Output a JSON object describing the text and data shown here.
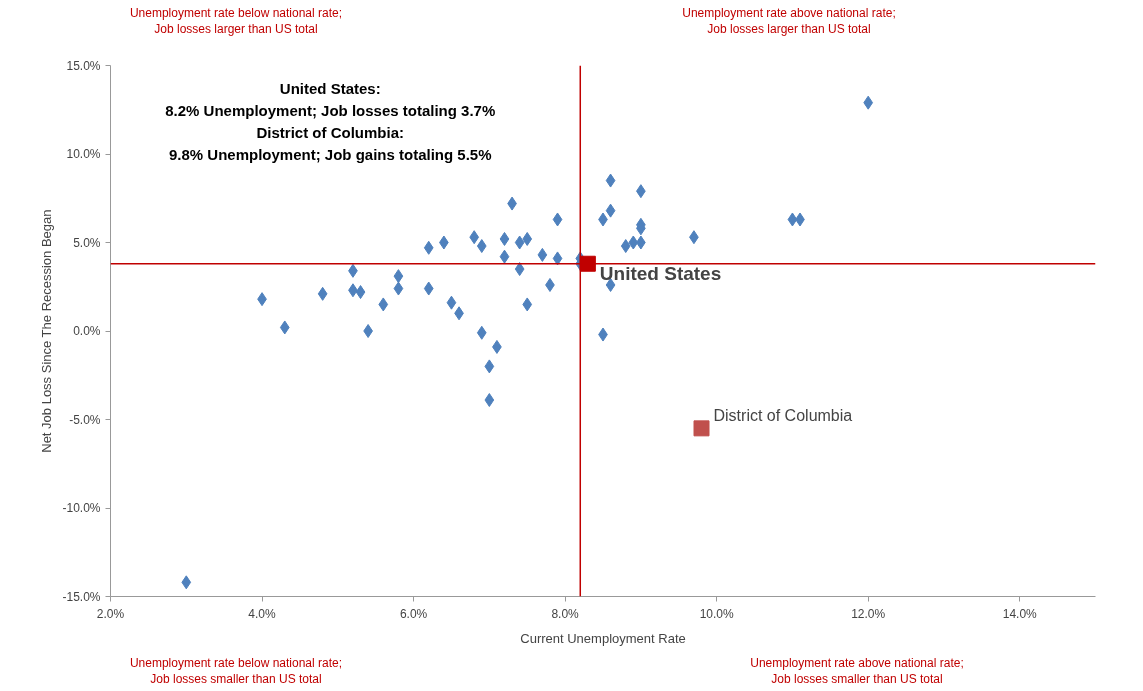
{
  "chart_data": {
    "type": "scatter",
    "xlabel": "Current Unemployment Rate",
    "ylabel": "Net Job Loss Since The Recession Began",
    "xlim": [
      2,
      15
    ],
    "ylim": [
      -15,
      15
    ],
    "xticks": [
      {
        "value": 2,
        "label": "2.0%"
      },
      {
        "value": 4,
        "label": "4.0%"
      },
      {
        "value": 6,
        "label": "6.0%"
      },
      {
        "value": 8,
        "label": "8.0%"
      },
      {
        "value": 10,
        "label": "10.0%"
      },
      {
        "value": 12,
        "label": "12.0%"
      },
      {
        "value": 14,
        "label": "14.0%"
      }
    ],
    "yticks": [
      {
        "value": -15,
        "label": "-15.0%"
      },
      {
        "value": -10,
        "label": "-10.0%"
      },
      {
        "value": -5,
        "label": "-5.0%"
      },
      {
        "value": 0,
        "label": "0.0%"
      },
      {
        "value": 5,
        "label": "5.0%"
      },
      {
        "value": 10,
        "label": "10.0%"
      },
      {
        "value": 15,
        "label": "15.0%"
      }
    ],
    "grid": false,
    "legend": false,
    "series": [
      {
        "color": "#4f81bd",
        "marker": "diamond",
        "x": [
          3.0,
          4.0,
          4.3,
          4.8,
          5.2,
          5.2,
          5.3,
          5.4,
          5.6,
          5.8,
          5.8,
          6.2,
          6.2,
          6.4,
          6.5,
          6.6,
          6.8,
          6.9,
          6.9,
          7.1,
          7.0,
          7.0,
          7.2,
          7.2,
          7.3,
          7.4,
          7.4,
          7.5,
          7.5,
          7.7,
          7.8,
          7.9,
          7.9,
          8.2,
          8.2,
          8.5,
          8.5,
          8.6,
          8.6,
          8.6,
          8.8,
          8.9,
          9.0,
          9.0,
          9.0,
          9.0,
          9.7,
          11.0,
          11.1,
          12.0
        ],
        "values": [
          -14.2,
          1.8,
          0.2,
          2.1,
          3.4,
          2.3,
          2.2,
          0.0,
          1.5,
          3.1,
          2.4,
          4.7,
          2.4,
          5.0,
          1.6,
          1.0,
          5.3,
          4.8,
          -0.1,
          -0.9,
          -2.0,
          -3.9,
          4.2,
          5.2,
          7.2,
          3.5,
          5.0,
          5.2,
          1.5,
          4.3,
          2.6,
          4.1,
          6.3,
          4.1,
          3.8,
          -0.2,
          6.3,
          8.5,
          6.8,
          2.6,
          4.8,
          5.0,
          5.0,
          6.0,
          5.8,
          7.9,
          5.3,
          6.3,
          6.3,
          12.9
        ]
      },
      {
        "name": "United States",
        "color": "#c00000",
        "marker": "square",
        "x": [
          8.3
        ],
        "values": [
          3.8
        ]
      },
      {
        "name": "District of Columbia",
        "color": "#c0504d",
        "marker": "square",
        "x": [
          9.8
        ],
        "values": [
          -5.5
        ]
      }
    ],
    "ref_lines": [
      {
        "axis": "x",
        "value": 8.2,
        "color": "#c00000"
      },
      {
        "axis": "y",
        "value": 3.8,
        "color": "#c00000"
      }
    ],
    "annotations": [
      "Unemployment rate below national rate;\nJob losses larger than US total",
      "Unemployment rate above national rate;\nJob losses larger than US total",
      "Unemployment rate below national rate;\nJob losses smaller than US total",
      "Unemployment rate above national rate;\nJob losses smaller than US total",
      "United States:\n8.2% Unemployment; Job losses totaling 3.7%\nDistrict of Columbia:\n9.8% Unemployment; Job gains totaling 5.5%"
    ]
  }
}
